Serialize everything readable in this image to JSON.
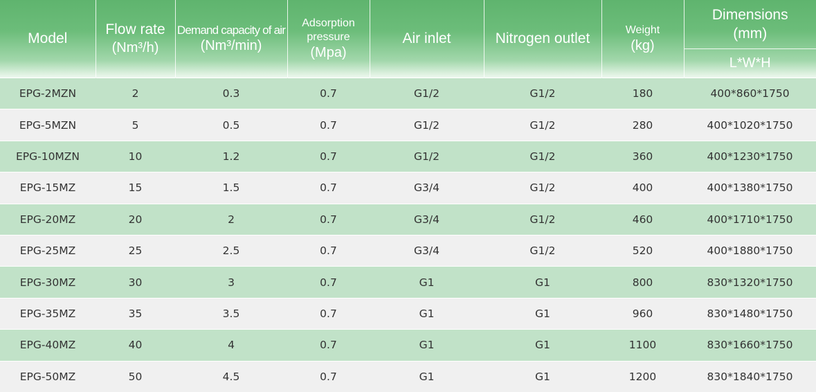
{
  "headers": {
    "model": "Model",
    "flow_rate": {
      "line1": "Flow rate",
      "line2": "(Nm³/h)"
    },
    "demand": {
      "line1": "Demand capacity of air",
      "line2": "(Nm³/min)"
    },
    "adsorption": {
      "line1": "Adsorption",
      "line2": "pressure",
      "line3": "(Mpa)"
    },
    "air_inlet": "Air inlet",
    "nitrogen_outlet": "Nitrogen outlet",
    "weight": {
      "line1": "Weight",
      "line2": "(kg)"
    },
    "dimensions": {
      "line1": "Dimensions",
      "line2": "(mm)",
      "line3": "L*W*H"
    }
  },
  "rows": [
    {
      "model": "EPG-2MZN",
      "flow": "2",
      "demand": "0.3",
      "pressure": "0.7",
      "air_inlet": "G1/2",
      "nitrogen_outlet": "G1/2",
      "weight": "180",
      "dims": "400*860*1750"
    },
    {
      "model": "EPG-5MZN",
      "flow": "5",
      "demand": "0.5",
      "pressure": "0.7",
      "air_inlet": "G1/2",
      "nitrogen_outlet": "G1/2",
      "weight": "280",
      "dims": "400*1020*1750"
    },
    {
      "model": "EPG-10MZN",
      "flow": "10",
      "demand": "1.2",
      "pressure": "0.7",
      "air_inlet": "G1/2",
      "nitrogen_outlet": "G1/2",
      "weight": "360",
      "dims": "400*1230*1750"
    },
    {
      "model": "EPG-15MZ",
      "flow": "15",
      "demand": "1.5",
      "pressure": "0.7",
      "air_inlet": "G3/4",
      "nitrogen_outlet": "G1/2",
      "weight": "400",
      "dims": "400*1380*1750"
    },
    {
      "model": "EPG-20MZ",
      "flow": "20",
      "demand": "2",
      "pressure": "0.7",
      "air_inlet": "G3/4",
      "nitrogen_outlet": "G1/2",
      "weight": "460",
      "dims": "400*1710*1750"
    },
    {
      "model": "EPG-25MZ",
      "flow": "25",
      "demand": "2.5",
      "pressure": "0.7",
      "air_inlet": "G3/4",
      "nitrogen_outlet": "G1/2",
      "weight": "520",
      "dims": "400*1880*1750"
    },
    {
      "model": "EPG-30MZ",
      "flow": "30",
      "demand": "3",
      "pressure": "0.7",
      "air_inlet": "G1",
      "nitrogen_outlet": "G1",
      "weight": "800",
      "dims": "830*1320*1750"
    },
    {
      "model": "EPG-35MZ",
      "flow": "35",
      "demand": "3.5",
      "pressure": "0.7",
      "air_inlet": "G1",
      "nitrogen_outlet": "G1",
      "weight": "960",
      "dims": "830*1480*1750"
    },
    {
      "model": "EPG-40MZ",
      "flow": "40",
      "demand": "4",
      "pressure": "0.7",
      "air_inlet": "G1",
      "nitrogen_outlet": "G1",
      "weight": "1100",
      "dims": "830*1660*1750"
    },
    {
      "model": "EPG-50MZ",
      "flow": "50",
      "demand": "4.5",
      "pressure": "0.7",
      "air_inlet": "G1",
      "nitrogen_outlet": "G1",
      "weight": "1200",
      "dims": "830*1840*1750"
    }
  ],
  "colors": {
    "header_green": "#5fb46e",
    "row_green": "#c1e2c8",
    "row_gray": "#f0f0f0",
    "text": "#333333"
  }
}
